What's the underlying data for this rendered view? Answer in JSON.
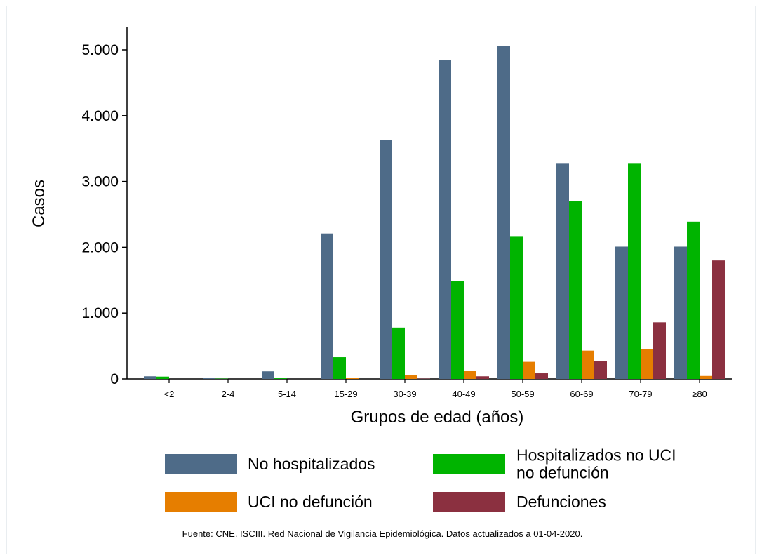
{
  "chart_data": {
    "type": "bar",
    "title": "",
    "xlabel": "Grupos de edad (años)",
    "ylabel": "Casos",
    "ylim": [
      0,
      5300
    ],
    "yticks": [
      0,
      1000,
      2000,
      3000,
      4000,
      5000
    ],
    "ytick_labels": [
      "0",
      "1.000",
      "2.000",
      "3.000",
      "4.000",
      "5.000"
    ],
    "categories": [
      "<2",
      "2-4",
      "5-14",
      "15-29",
      "30-39",
      "40-49",
      "50-59",
      "60-69",
      "70-79",
      "≥80"
    ],
    "series": [
      {
        "name": "No hospitalizados",
        "color": "#4e6b88",
        "values": [
          40,
          15,
          115,
          2210,
          3630,
          4840,
          5060,
          3280,
          2010,
          2010
        ]
      },
      {
        "name": "Hospitalizados no UCI\nno defunción",
        "color": "#00b400",
        "values": [
          35,
          5,
          10,
          330,
          780,
          1490,
          2160,
          2700,
          3280,
          2390
        ]
      },
      {
        "name": "UCI no defunción",
        "color": "#e67e00",
        "values": [
          0,
          0,
          0,
          20,
          55,
          120,
          260,
          430,
          450,
          45
        ]
      },
      {
        "name": "Defunciones",
        "color": "#8b3040",
        "values": [
          0,
          0,
          0,
          0,
          5,
          40,
          85,
          270,
          860,
          1800
        ]
      }
    ],
    "grid": false,
    "legend_position": "bottom"
  },
  "legend": {
    "items": [
      {
        "lines": [
          "No hospitalizados"
        ]
      },
      {
        "lines": [
          "Hospitalizados no UCI",
          "no defunción"
        ]
      },
      {
        "lines": [
          "UCI no defunción"
        ]
      },
      {
        "lines": [
          "Defunciones"
        ]
      }
    ]
  },
  "source_note": "Fuente: CNE. ISCIII. Red Nacional de Vigilancia Epidemiológica. Datos actualizados a 01-04-2020."
}
